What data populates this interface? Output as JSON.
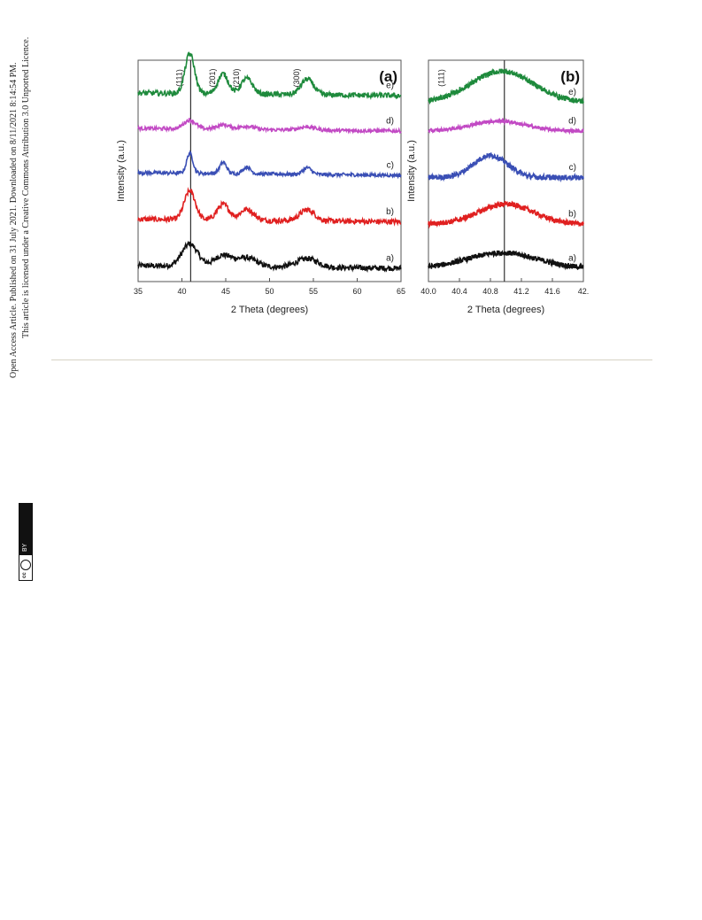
{
  "sidebar": {
    "line1": "Open Access Article. Published on 31 July 2021. Downloaded on 8/11/2021 8:14:54 PM.",
    "line2": "This article is licensed under a Creative Commons Attribution 3.0 Unported Licence.",
    "badge_by": "BY",
    "badge_cc": "cc"
  },
  "chart_data": [
    {
      "type": "line",
      "panel_label": "(a)",
      "xlabel": "2 Theta (degrees)",
      "ylabel": "Intensity (a.u.)",
      "xlim": [
        35,
        65
      ],
      "xticks": [
        "35",
        "40",
        "45",
        "50",
        "55",
        "60",
        "65"
      ],
      "reference_line_x": 41,
      "peak_labels": [
        {
          "text": "(111)",
          "x": 40.9
        },
        {
          "text": "(201)",
          "x": 44.7
        },
        {
          "text": "(210)",
          "x": 47.4
        },
        {
          "text": "(300)",
          "x": 54.3
        }
      ],
      "peaks": [
        {
          "x": 40.9,
          "w": 0.45
        },
        {
          "x": 44.7,
          "w": 0.5
        },
        {
          "x": 47.4,
          "w": 0.55
        },
        {
          "x": 54.3,
          "w": 0.6
        }
      ],
      "series": [
        {
          "name": "a)",
          "color": "#111111",
          "base": 0.06,
          "heights": [
            0.1,
            0.05,
            0.04,
            0.04
          ],
          "width_scale": 2.0,
          "noise": 0.012
        },
        {
          "name": "b)",
          "color": "#e02020",
          "base": 0.27,
          "heights": [
            0.13,
            0.07,
            0.05,
            0.05
          ],
          "width_scale": 1.4,
          "noise": 0.012
        },
        {
          "name": "c)",
          "color": "#3a4fb5",
          "base": 0.48,
          "heights": [
            0.09,
            0.05,
            0.03,
            0.03
          ],
          "width_scale": 0.8,
          "noise": 0.008
        },
        {
          "name": "d)",
          "color": "#c24ac4",
          "base": 0.68,
          "heights": [
            0.04,
            0.02,
            0.015,
            0.015
          ],
          "width_scale": 1.5,
          "noise": 0.008
        },
        {
          "name": "e)",
          "color": "#1e8a3c",
          "base": 0.84,
          "heights": [
            0.18,
            0.09,
            0.07,
            0.07
          ],
          "width_scale": 1.2,
          "noise": 0.012
        }
      ]
    },
    {
      "type": "line",
      "panel_label": "(b)",
      "xlabel": "2 Theta (degrees)",
      "ylabel": "Intensity (a.u.)",
      "xlim": [
        40.0,
        42.0
      ],
      "xticks": [
        "40.0",
        "40.4",
        "40.8",
        "41.2",
        "41.6",
        "42."
      ],
      "reference_line_x": 40.98,
      "peak_labels": [
        {
          "text": "(111)",
          "x": 40.3
        }
      ],
      "series": [
        {
          "name": "a)",
          "color": "#111111",
          "base": 0.06,
          "peak_x": 40.95,
          "peak_h": 0.07,
          "peak_w": 0.45,
          "noise": 0.012
        },
        {
          "name": "b)",
          "color": "#e02020",
          "base": 0.26,
          "peak_x": 41.0,
          "peak_h": 0.09,
          "peak_w": 0.35,
          "noise": 0.012
        },
        {
          "name": "c)",
          "color": "#3a4fb5",
          "base": 0.47,
          "peak_x": 40.8,
          "peak_h": 0.1,
          "peak_w": 0.22,
          "noise": 0.012
        },
        {
          "name": "d)",
          "color": "#c24ac4",
          "base": 0.68,
          "peak_x": 40.9,
          "peak_h": 0.045,
          "peak_w": 0.35,
          "noise": 0.008
        },
        {
          "name": "e)",
          "color": "#1e8a3c",
          "base": 0.81,
          "peak_x": 40.95,
          "peak_h": 0.14,
          "peak_w": 0.4,
          "noise": 0.012
        }
      ]
    }
  ]
}
